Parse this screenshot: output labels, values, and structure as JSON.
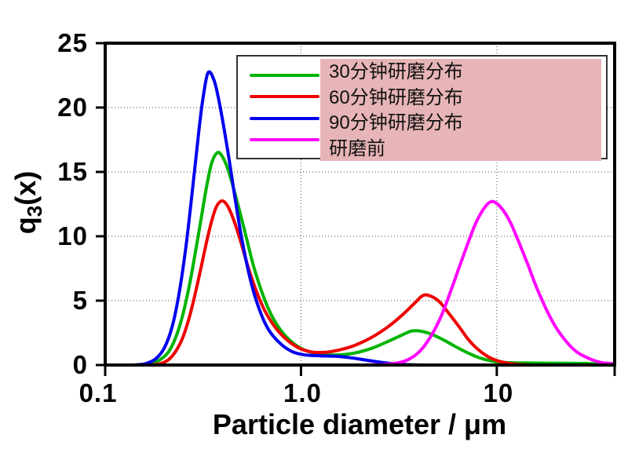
{
  "chart_data": {
    "type": "line",
    "title": "",
    "xlabel": "Particle diameter / μm",
    "ylabel": "q3(x)",
    "ylabel_parts": {
      "base": "q",
      "sub": "3",
      "rest": "(x)"
    },
    "x_scale": "log",
    "xlim": [
      0.1,
      40
    ],
    "ylim": [
      0,
      25
    ],
    "x_ticks": [
      {
        "v": 0.1,
        "label": "0.1"
      },
      {
        "v": 1,
        "label": "1.0"
      },
      {
        "v": 10,
        "label": "10"
      }
    ],
    "y_ticks": [
      {
        "v": 0,
        "label": "0"
      },
      {
        "v": 5,
        "label": "5"
      },
      {
        "v": 10,
        "label": "10"
      },
      {
        "v": 15,
        "label": "15"
      },
      {
        "v": 20,
        "label": "20"
      },
      {
        "v": 25,
        "label": "25"
      }
    ],
    "grid": {
      "x_values": [
        1,
        10
      ],
      "y_values": [
        5,
        10,
        15,
        20
      ],
      "style": "dotted",
      "color": "#6b6b6b"
    },
    "axis_color": "#000000",
    "legend": {
      "position": "top-right",
      "background": "#ffffff",
      "border_color": "#333333",
      "highlight_color": "#e7b5b7"
    },
    "series": [
      {
        "id": "grind-30min",
        "name": "30分钟研磨分布",
        "color": "#00b400",
        "points": [
          [
            0.15,
            0
          ],
          [
            0.17,
            0.1
          ],
          [
            0.19,
            0.4
          ],
          [
            0.21,
            1.0
          ],
          [
            0.23,
            2.2
          ],
          [
            0.25,
            4.0
          ],
          [
            0.27,
            6.3
          ],
          [
            0.29,
            8.9
          ],
          [
            0.31,
            11.5
          ],
          [
            0.33,
            13.9
          ],
          [
            0.35,
            15.7
          ],
          [
            0.375,
            16.5
          ],
          [
            0.4,
            16.1
          ],
          [
            0.43,
            14.9
          ],
          [
            0.47,
            12.8
          ],
          [
            0.52,
            10.2
          ],
          [
            0.57,
            7.8
          ],
          [
            0.63,
            5.7
          ],
          [
            0.7,
            4.0
          ],
          [
            0.78,
            2.8
          ],
          [
            0.88,
            1.9
          ],
          [
            1.0,
            1.3
          ],
          [
            1.15,
            0.95
          ],
          [
            1.35,
            0.8
          ],
          [
            1.6,
            0.8
          ],
          [
            1.9,
            0.95
          ],
          [
            2.3,
            1.3
          ],
          [
            2.8,
            1.85
          ],
          [
            3.3,
            2.35
          ],
          [
            3.7,
            2.65
          ],
          [
            4.2,
            2.6
          ],
          [
            4.8,
            2.3
          ],
          [
            5.5,
            1.85
          ],
          [
            6.3,
            1.35
          ],
          [
            7.2,
            0.9
          ],
          [
            8.2,
            0.55
          ],
          [
            9.5,
            0.3
          ],
          [
            11,
            0.2
          ],
          [
            14,
            0.16
          ],
          [
            20,
            0.14
          ],
          [
            28,
            0.12
          ],
          [
            35,
            0.08
          ],
          [
            40,
            0.04
          ]
        ]
      },
      {
        "id": "grind-60min",
        "name": "60分钟研磨分布",
        "color": "#ee0000",
        "points": [
          [
            0.17,
            0
          ],
          [
            0.19,
            0.1
          ],
          [
            0.21,
            0.4
          ],
          [
            0.23,
            1.1
          ],
          [
            0.25,
            2.2
          ],
          [
            0.27,
            3.8
          ],
          [
            0.29,
            5.7
          ],
          [
            0.31,
            7.7
          ],
          [
            0.33,
            9.6
          ],
          [
            0.35,
            11.2
          ],
          [
            0.37,
            12.3
          ],
          [
            0.395,
            12.75
          ],
          [
            0.42,
            12.4
          ],
          [
            0.45,
            11.4
          ],
          [
            0.49,
            9.7
          ],
          [
            0.53,
            7.9
          ],
          [
            0.58,
            6.1
          ],
          [
            0.64,
            4.5
          ],
          [
            0.71,
            3.3
          ],
          [
            0.79,
            2.4
          ],
          [
            0.89,
            1.7
          ],
          [
            1.0,
            1.25
          ],
          [
            1.15,
            1.0
          ],
          [
            1.35,
            1.0
          ],
          [
            1.6,
            1.2
          ],
          [
            1.9,
            1.55
          ],
          [
            2.3,
            2.15
          ],
          [
            2.8,
            3.0
          ],
          [
            3.3,
            3.9
          ],
          [
            3.8,
            4.8
          ],
          [
            4.2,
            5.4
          ],
          [
            4.6,
            5.35
          ],
          [
            5.1,
            4.9
          ],
          [
            5.7,
            4.0
          ],
          [
            6.4,
            3.0
          ],
          [
            7.1,
            2.05
          ],
          [
            7.9,
            1.3
          ],
          [
            8.9,
            0.7
          ],
          [
            10,
            0.35
          ],
          [
            11.5,
            0.13
          ],
          [
            13,
            0.04
          ],
          [
            15,
            0
          ]
        ]
      },
      {
        "id": "grind-90min",
        "name": "90分钟研磨分布",
        "color": "#0000ee",
        "points": [
          [
            0.14,
            0
          ],
          [
            0.16,
            0.1
          ],
          [
            0.18,
            0.45
          ],
          [
            0.2,
            1.3
          ],
          [
            0.22,
            3.0
          ],
          [
            0.24,
            5.8
          ],
          [
            0.26,
            9.5
          ],
          [
            0.28,
            13.8
          ],
          [
            0.3,
            18.0
          ],
          [
            0.315,
            20.6
          ],
          [
            0.335,
            22.7
          ],
          [
            0.36,
            22.1
          ],
          [
            0.385,
            20.2
          ],
          [
            0.42,
            16.9
          ],
          [
            0.46,
            13.0
          ],
          [
            0.5,
            9.7
          ],
          [
            0.55,
            6.7
          ],
          [
            0.61,
            4.4
          ],
          [
            0.68,
            2.8
          ],
          [
            0.78,
            1.7
          ],
          [
            0.9,
            1.05
          ],
          [
            1.05,
            0.78
          ],
          [
            1.25,
            0.72
          ],
          [
            1.5,
            0.68
          ],
          [
            1.8,
            0.56
          ],
          [
            2.2,
            0.36
          ],
          [
            2.7,
            0.17
          ],
          [
            3.2,
            0.06
          ],
          [
            3.8,
            0.01
          ],
          [
            4.5,
            0
          ]
        ]
      },
      {
        "id": "before-grinding",
        "name": "研磨前",
        "color": "#ff00ff",
        "points": [
          [
            0.1,
            0
          ],
          [
            1.5,
            0
          ],
          [
            2.2,
            0.01
          ],
          [
            2.7,
            0.05
          ],
          [
            3.1,
            0.15
          ],
          [
            3.5,
            0.4
          ],
          [
            3.9,
            0.85
          ],
          [
            4.3,
            1.55
          ],
          [
            4.8,
            2.7
          ],
          [
            5.3,
            4.1
          ],
          [
            5.9,
            6.0
          ],
          [
            6.5,
            7.8
          ],
          [
            7.1,
            9.4
          ],
          [
            7.7,
            10.8
          ],
          [
            8.3,
            11.8
          ],
          [
            8.9,
            12.45
          ],
          [
            9.4,
            12.7
          ],
          [
            10.0,
            12.55
          ],
          [
            10.8,
            12.0
          ],
          [
            11.8,
            11.0
          ],
          [
            13,
            9.5
          ],
          [
            14.5,
            7.7
          ],
          [
            16,
            6.0
          ],
          [
            18,
            4.25
          ],
          [
            20,
            2.95
          ],
          [
            23,
            1.7
          ],
          [
            26,
            0.95
          ],
          [
            30,
            0.47
          ],
          [
            34,
            0.2
          ],
          [
            38,
            0.12
          ],
          [
            40,
            0.08
          ]
        ]
      }
    ]
  }
}
